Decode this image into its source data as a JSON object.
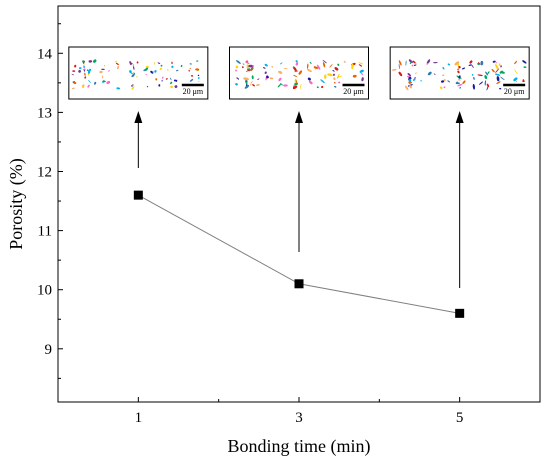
{
  "chart_data": {
    "type": "line",
    "x": [
      1,
      3,
      5
    ],
    "y": [
      11.6,
      10.1,
      9.6
    ],
    "xlabel": "Bonding time (min)",
    "ylabel": "Porosity (%)",
    "xlim": [
      0,
      6
    ],
    "ylim": [
      8.1,
      14.8
    ],
    "xticks": [
      1,
      3,
      5
    ],
    "yticks": [
      9,
      10,
      11,
      12,
      13,
      14
    ],
    "grid": false,
    "line_color": "#808080",
    "marker": "square",
    "marker_color": "#000000",
    "insets": [
      {
        "x": 1,
        "scale_bar": "20 μm"
      },
      {
        "x": 3,
        "scale_bar": "20 μm"
      },
      {
        "x": 5,
        "scale_bar": "20 μm"
      }
    ]
  }
}
